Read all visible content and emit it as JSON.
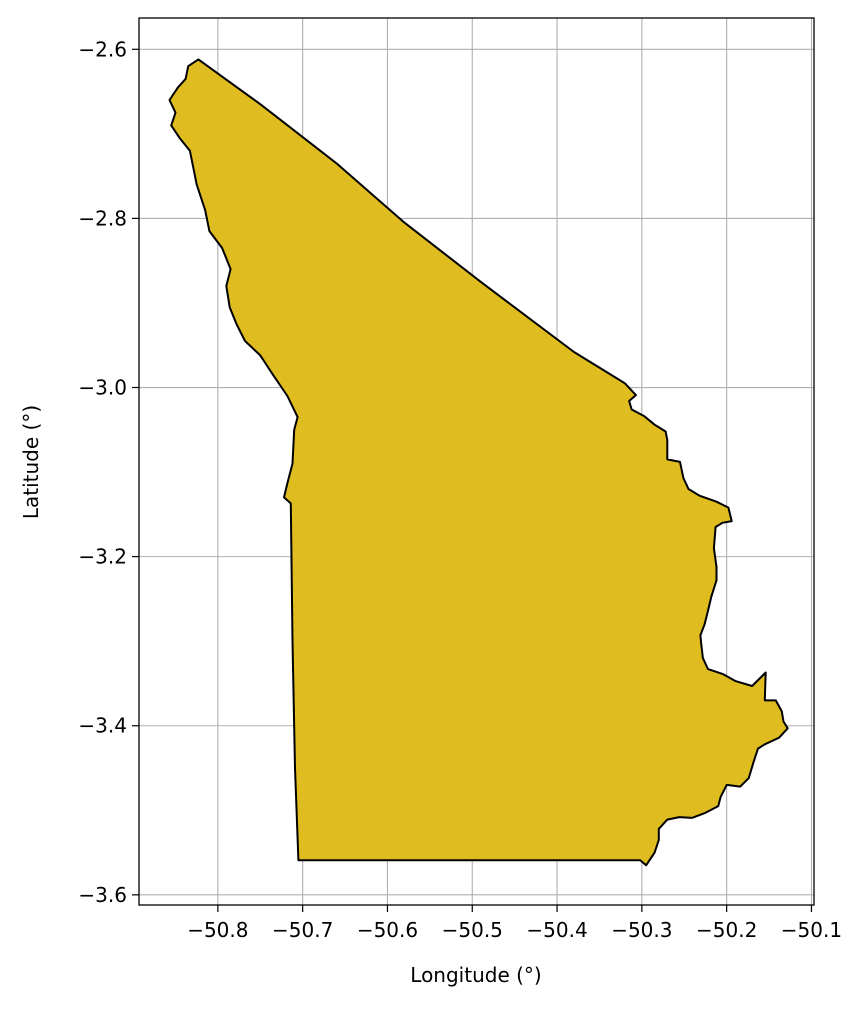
{
  "chart_data": {
    "type": "map",
    "xlabel": "Longitude (°)",
    "ylabel": "Latitude (°)",
    "xlim": [
      -50.893,
      -50.097
    ],
    "ylim": [
      -3.612,
      -2.563
    ],
    "x_ticks": [
      {
        "value": -50.8,
        "label": "−50.8"
      },
      {
        "value": -50.7,
        "label": "−50.7"
      },
      {
        "value": -50.6,
        "label": "−50.6"
      },
      {
        "value": -50.5,
        "label": "−50.5"
      },
      {
        "value": -50.4,
        "label": "−50.4"
      },
      {
        "value": -50.3,
        "label": "−50.3"
      },
      {
        "value": -50.2,
        "label": "−50.2"
      },
      {
        "value": -50.1,
        "label": "−50.1"
      }
    ],
    "y_ticks": [
      {
        "value": -2.6,
        "label": "−2.6"
      },
      {
        "value": -2.8,
        "label": "−2.8"
      },
      {
        "value": -3.0,
        "label": "−3.0"
      },
      {
        "value": -3.2,
        "label": "−3.2"
      },
      {
        "value": -3.4,
        "label": "−3.4"
      },
      {
        "value": -3.6,
        "label": "−3.6"
      }
    ],
    "grid": true,
    "region": {
      "fill_color": "#DFBC1F",
      "edge_color": "#000000",
      "boundary": [
        [
          -50.823,
          -2.612
        ],
        [
          -50.75,
          -2.665
        ],
        [
          -50.66,
          -2.735
        ],
        [
          -50.58,
          -2.805
        ],
        [
          -50.49,
          -2.875
        ],
        [
          -50.38,
          -2.958
        ],
        [
          -50.32,
          -2.995
        ],
        [
          -50.307,
          -3.009
        ],
        [
          -50.315,
          -3.016
        ],
        [
          -50.312,
          -3.026
        ],
        [
          -50.297,
          -3.034
        ],
        [
          -50.285,
          -3.044
        ],
        [
          -50.272,
          -3.052
        ],
        [
          -50.27,
          -3.062
        ],
        [
          -50.27,
          -3.085
        ],
        [
          -50.255,
          -3.088
        ],
        [
          -50.251,
          -3.107
        ],
        [
          -50.245,
          -3.12
        ],
        [
          -50.232,
          -3.128
        ],
        [
          -50.212,
          -3.135
        ],
        [
          -50.198,
          -3.142
        ],
        [
          -50.194,
          -3.158
        ],
        [
          -50.205,
          -3.16
        ],
        [
          -50.213,
          -3.165
        ],
        [
          -50.215,
          -3.19
        ],
        [
          -50.212,
          -3.212
        ],
        [
          -50.212,
          -3.228
        ],
        [
          -50.218,
          -3.247
        ],
        [
          -50.222,
          -3.264
        ],
        [
          -50.226,
          -3.28
        ],
        [
          -50.231,
          -3.293
        ],
        [
          -50.23,
          -3.303
        ],
        [
          -50.228,
          -3.32
        ],
        [
          -50.222,
          -3.333
        ],
        [
          -50.204,
          -3.339
        ],
        [
          -50.19,
          -3.347
        ],
        [
          -50.17,
          -3.353
        ],
        [
          -50.154,
          -3.337
        ],
        [
          -50.155,
          -3.37
        ],
        [
          -50.142,
          -3.37
        ],
        [
          -50.135,
          -3.383
        ],
        [
          -50.133,
          -3.395
        ],
        [
          -50.128,
          -3.403
        ],
        [
          -50.138,
          -3.414
        ],
        [
          -50.155,
          -3.422
        ],
        [
          -50.163,
          -3.427
        ],
        [
          -50.168,
          -3.442
        ],
        [
          -50.174,
          -3.462
        ],
        [
          -50.184,
          -3.472
        ],
        [
          -50.2,
          -3.47
        ],
        [
          -50.207,
          -3.484
        ],
        [
          -50.21,
          -3.495
        ],
        [
          -50.225,
          -3.503
        ],
        [
          -50.241,
          -3.509
        ],
        [
          -50.256,
          -3.508
        ],
        [
          -50.27,
          -3.511
        ],
        [
          -50.28,
          -3.522
        ],
        [
          -50.28,
          -3.535
        ],
        [
          -50.285,
          -3.55
        ],
        [
          -50.295,
          -3.565
        ],
        [
          -50.302,
          -3.559
        ],
        [
          -50.705,
          -3.559
        ],
        [
          -50.709,
          -3.45
        ],
        [
          -50.712,
          -3.3
        ],
        [
          -50.714,
          -3.137
        ],
        [
          -50.722,
          -3.13
        ],
        [
          -50.718,
          -3.113
        ],
        [
          -50.712,
          -3.09
        ],
        [
          -50.71,
          -3.05
        ],
        [
          -50.706,
          -3.035
        ],
        [
          -50.718,
          -3.01
        ],
        [
          -50.735,
          -2.985
        ],
        [
          -50.75,
          -2.962
        ],
        [
          -50.768,
          -2.945
        ],
        [
          -50.778,
          -2.925
        ],
        [
          -50.786,
          -2.905
        ],
        [
          -50.79,
          -2.88
        ],
        [
          -50.785,
          -2.86
        ],
        [
          -50.795,
          -2.835
        ],
        [
          -50.81,
          -2.815
        ],
        [
          -50.815,
          -2.79
        ],
        [
          -50.825,
          -2.76
        ],
        [
          -50.833,
          -2.72
        ],
        [
          -50.845,
          -2.705
        ],
        [
          -50.855,
          -2.69
        ],
        [
          -50.85,
          -2.675
        ],
        [
          -50.857,
          -2.66
        ],
        [
          -50.847,
          -2.645
        ],
        [
          -50.838,
          -2.635
        ],
        [
          -50.835,
          -2.62
        ]
      ]
    }
  }
}
